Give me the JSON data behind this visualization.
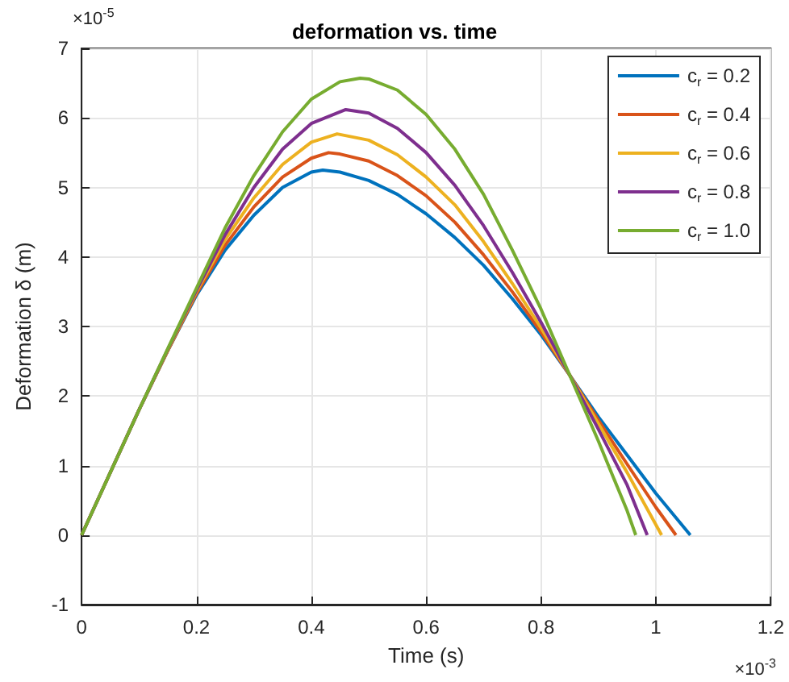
{
  "chart_data": {
    "type": "line",
    "title": "deformation vs. time",
    "xlabel": "Time (s)",
    "ylabel": "Deformation δ (m)",
    "annotations": [
      "×10$^{-5}$",
      "×10$^{-3}$"
    ],
    "xlim": [
      0,
      1.2
    ],
    "xticks": [
      0,
      0.2,
      0.4,
      0.6,
      0.8,
      1,
      1.2
    ],
    "ylim": [
      -1,
      7
    ],
    "yticks": [
      -1,
      0,
      1,
      2,
      3,
      4,
      5,
      6,
      7
    ],
    "grid": true,
    "legend": "top right",
    "marker": "none",
    "line_style": "solid",
    "series": [
      {
        "name": "c$_{r}$ = 0.2",
        "color": "#0072bd",
        "x": [
          0,
          0.1,
          0.15,
          0.2,
          0.25,
          0.3,
          0.35,
          0.4,
          0.42,
          0.45,
          0.5,
          0.55,
          0.6,
          0.65,
          0.7,
          0.75,
          0.8,
          0.85,
          0.9,
          0.95,
          1.0,
          1.06
        ],
        "values": [
          0,
          1.8,
          2.65,
          3.45,
          4.1,
          4.6,
          5.0,
          5.22,
          5.25,
          5.22,
          5.1,
          4.9,
          4.62,
          4.28,
          3.88,
          3.4,
          2.88,
          2.3,
          1.7,
          1.15,
          0.6,
          0
        ]
      },
      {
        "name": "c$_{r}$ = 0.4",
        "color": "#d95319",
        "x": [
          0,
          0.1,
          0.15,
          0.2,
          0.25,
          0.3,
          0.35,
          0.4,
          0.43,
          0.45,
          0.5,
          0.55,
          0.6,
          0.65,
          0.7,
          0.75,
          0.8,
          0.85,
          0.9,
          0.95,
          1.0,
          1.035
        ],
        "values": [
          0,
          1.8,
          2.65,
          3.47,
          4.17,
          4.72,
          5.15,
          5.42,
          5.5,
          5.48,
          5.38,
          5.17,
          4.88,
          4.5,
          4.03,
          3.5,
          2.92,
          2.3,
          1.65,
          1.02,
          0.4,
          0
        ]
      },
      {
        "name": "c$_{r}$ = 0.6",
        "color": "#edb120",
        "x": [
          0,
          0.1,
          0.15,
          0.2,
          0.25,
          0.3,
          0.35,
          0.4,
          0.445,
          0.5,
          0.55,
          0.6,
          0.65,
          0.7,
          0.75,
          0.8,
          0.85,
          0.9,
          0.95,
          1.01
        ],
        "values": [
          0,
          1.8,
          2.66,
          3.5,
          4.25,
          4.85,
          5.33,
          5.65,
          5.77,
          5.68,
          5.47,
          5.15,
          4.75,
          4.22,
          3.62,
          2.98,
          2.3,
          1.6,
          0.9,
          0
        ]
      },
      {
        "name": "c$_{r}$ = 0.8",
        "color": "#7e2f8e",
        "x": [
          0,
          0.1,
          0.15,
          0.2,
          0.25,
          0.3,
          0.35,
          0.4,
          0.46,
          0.5,
          0.55,
          0.6,
          0.65,
          0.7,
          0.75,
          0.8,
          0.85,
          0.9,
          0.95,
          0.985
        ],
        "values": [
          0,
          1.8,
          2.67,
          3.52,
          4.32,
          5.0,
          5.55,
          5.92,
          6.12,
          6.07,
          5.85,
          5.5,
          5.03,
          4.45,
          3.78,
          3.06,
          2.3,
          1.52,
          0.72,
          0
        ]
      },
      {
        "name": "c$_{r}$ = 1.0",
        "color": "#77ac30",
        "x": [
          0,
          0.05,
          0.1,
          0.15,
          0.2,
          0.25,
          0.3,
          0.35,
          0.4,
          0.45,
          0.485,
          0.5,
          0.55,
          0.6,
          0.65,
          0.7,
          0.75,
          0.8,
          0.85,
          0.9,
          0.95,
          0.965
        ],
        "values": [
          0,
          0.9,
          1.8,
          2.68,
          3.55,
          4.42,
          5.17,
          5.8,
          6.27,
          6.52,
          6.57,
          6.56,
          6.4,
          6.05,
          5.55,
          4.9,
          4.1,
          3.25,
          2.3,
          1.35,
          0.35,
          0
        ]
      }
    ]
  }
}
